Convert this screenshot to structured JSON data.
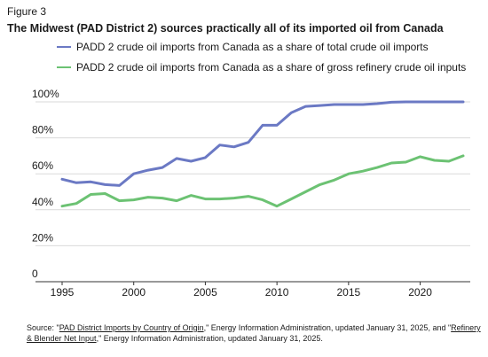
{
  "figure_label": "Figure 3",
  "chart_data": {
    "type": "line",
    "title": "The Midwest (PAD District 2) sources practically all of its imported oil from Canada",
    "xlabel": "",
    "ylabel": "",
    "xlim": [
      1995,
      2023
    ],
    "ylim": [
      0,
      100
    ],
    "x_ticks": [
      1995,
      2000,
      2005,
      2010,
      2015,
      2020
    ],
    "x_tick_labels": [
      "1995",
      "2000",
      "2005",
      "2010",
      "2015",
      "2020"
    ],
    "y_ticks": [
      0,
      20,
      40,
      60,
      80,
      100
    ],
    "y_tick_labels": [
      "0",
      "20%",
      "40%",
      "60%",
      "80%",
      "100%"
    ],
    "grid": "horizontal",
    "legend_position": "top-left",
    "x": [
      1995,
      1996,
      1997,
      1998,
      1999,
      2000,
      2001,
      2002,
      2003,
      2004,
      2005,
      2006,
      2007,
      2008,
      2009,
      2010,
      2011,
      2012,
      2013,
      2014,
      2015,
      2016,
      2017,
      2018,
      2019,
      2020,
      2021,
      2022,
      2023
    ],
    "series": [
      {
        "name": "PADD 2 crude oil imports from Canada as a share of total crude oil imports",
        "color": "#6b79c4",
        "values": [
          57,
          55,
          55.5,
          54,
          53.5,
          60,
          62,
          63.5,
          68.5,
          67,
          69,
          76,
          75,
          77.5,
          87,
          87,
          94,
          97.5,
          98,
          98.5,
          98.5,
          98.5,
          99,
          99.8,
          100,
          100,
          100,
          100,
          100
        ]
      },
      {
        "name": "PADD 2 crude oil imports from Canada as a share of gross refinery crude oil inputs",
        "color": "#6cc273",
        "values": [
          42,
          43.5,
          48.5,
          49,
          45,
          45.5,
          47,
          46.5,
          45,
          48,
          46,
          46,
          46.5,
          47.5,
          45.5,
          42,
          46,
          50,
          54,
          56.5,
          60,
          61.5,
          63.5,
          66,
          66.5,
          69.5,
          67.5,
          67,
          70
        ]
      }
    ]
  },
  "source": {
    "prefix": "Source: \"",
    "link1": "PAD District Imports by Country of Origin",
    "middle": ",\" Energy Information Administration, updated January 31, 2025, and \"",
    "link2": "Refinery & Blender Net Input",
    "suffix": ",\" Energy Information Administration, updated January 31, 2025."
  }
}
